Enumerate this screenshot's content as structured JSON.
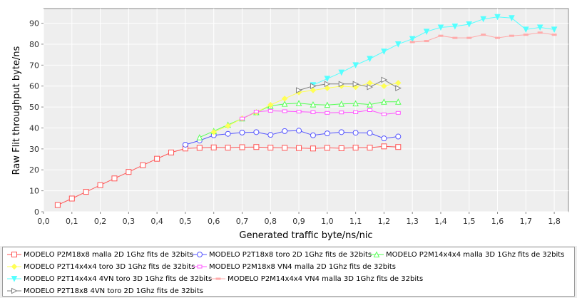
{
  "chart_data": {
    "type": "line",
    "title": "",
    "xlabel": "Generated traffic byte/ns/nic",
    "ylabel": "Raw Flit throughput byte/ns",
    "xlim": [
      0.0,
      1.85
    ],
    "ylim": [
      0,
      97
    ],
    "x_ticks": [
      "0,0",
      "0,1",
      "0,2",
      "0,3",
      "0,4",
      "0,5",
      "0,6",
      "0,7",
      "0,8",
      "0,9",
      "1,0",
      "1,1",
      "1,2",
      "1,3",
      "1,4",
      "1,5",
      "1,6",
      "1,7",
      "1,8"
    ],
    "y_ticks": [
      "0",
      "10",
      "20",
      "30",
      "40",
      "50",
      "60",
      "70",
      "80",
      "90"
    ],
    "grid": true,
    "legend_position": "bottom",
    "series": [
      {
        "name": "MODELO P2M18x8 malla 2D 1Ghz fits de 32bits",
        "color": "#ff5555",
        "marker": "square",
        "x": [
          0.05,
          0.1,
          0.15,
          0.2,
          0.25,
          0.3,
          0.35,
          0.4,
          0.45,
          0.5,
          0.55,
          0.6,
          0.65,
          0.7,
          0.75,
          0.8,
          0.85,
          0.9,
          0.95,
          1.0,
          1.05,
          1.1,
          1.15,
          1.2,
          1.25
        ],
        "y": [
          3.2,
          6.3,
          9.5,
          12.7,
          15.9,
          19.0,
          22.2,
          25.3,
          28.3,
          30.2,
          30.5,
          30.7,
          30.6,
          30.8,
          30.9,
          30.6,
          30.5,
          30.4,
          30.2,
          30.5,
          30.3,
          30.6,
          30.6,
          31.2,
          30.9
        ]
      },
      {
        "name": "MODELO P2T18x8 toro 2D 1Ghz fits de 32bits",
        "color": "#5555ff",
        "marker": "circle",
        "x": [
          0.5,
          0.55,
          0.6,
          0.65,
          0.7,
          0.75,
          0.8,
          0.85,
          0.9,
          0.95,
          1.0,
          1.05,
          1.1,
          1.15,
          1.2,
          1.25
        ],
        "y": [
          32.0,
          34.0,
          36.5,
          37.2,
          37.8,
          38.0,
          36.7,
          38.5,
          38.7,
          36.5,
          37.4,
          38.0,
          37.7,
          37.6,
          35.0,
          35.9
        ]
      },
      {
        "name": "MODELO P2M14x4x4 malla 3D 1Ghz fits de 32bits",
        "color": "#55ff55",
        "marker": "triangle-up",
        "x": [
          0.55,
          0.6,
          0.65,
          0.7,
          0.75,
          0.8,
          0.85,
          0.9,
          0.95,
          1.0,
          1.05,
          1.1,
          1.15,
          1.2,
          1.25
        ],
        "y": [
          35.5,
          38.5,
          41.5,
          44.5,
          47.5,
          50.5,
          51.5,
          51.8,
          51.2,
          51.0,
          51.5,
          51.7,
          51.2,
          52.5,
          52.5
        ]
      },
      {
        "name": "MODELO P2T14x4x4 toro 3D 1Ghz fits de 32bits",
        "color": "#ffff55",
        "marker": "diamond",
        "x": [
          0.6,
          0.65,
          0.7,
          0.75,
          0.8,
          0.85,
          0.9,
          0.95,
          1.0,
          1.05,
          1.1,
          1.15,
          1.2,
          1.25
        ],
        "y": [
          38.0,
          41.0,
          44.5,
          47.5,
          51.0,
          54.0,
          57.0,
          58.0,
          59.0,
          60.0,
          59.5,
          61.5,
          60.0,
          61.5
        ]
      },
      {
        "name": "MODELO P2M18x8 VN4 malla 2D 1Ghz fits de 32bits",
        "color": "#ff55ff",
        "marker": "square-small",
        "x": [
          0.7,
          0.75,
          0.8,
          0.85,
          0.9,
          0.95,
          1.0,
          1.05,
          1.1,
          1.15,
          1.2,
          1.25
        ],
        "y": [
          44.5,
          47.8,
          48.2,
          48.0,
          47.8,
          47.5,
          47.2,
          47.4,
          47.5,
          48.5,
          46.5,
          47.2
        ]
      },
      {
        "name": "MODELO P2T14x4x4 4VN toro 3D 1Ghz fits de 32bits",
        "color": "#55ffff",
        "marker": "triangle-down",
        "x": [
          0.95,
          1.0,
          1.05,
          1.1,
          1.15,
          1.2,
          1.25,
          1.3,
          1.35,
          1.4,
          1.45,
          1.5,
          1.55,
          1.6,
          1.65,
          1.7,
          1.75,
          1.8
        ],
        "y": [
          60.5,
          63.5,
          66.5,
          70.0,
          73.0,
          76.5,
          80.0,
          82.5,
          86.0,
          88.0,
          88.5,
          89.5,
          92.0,
          93.0,
          92.5,
          87.0,
          88.0,
          87.0
        ]
      },
      {
        "name": "MODELO P2M14x4x4 VN4 malla 3D 1Ghz fits de 32bits",
        "color": "#ffaaaa",
        "marker": "dash",
        "x": [
          1.3,
          1.35,
          1.4,
          1.45,
          1.5,
          1.55,
          1.6,
          1.65,
          1.7,
          1.75,
          1.8
        ],
        "y": [
          81.0,
          81.5,
          84.0,
          83.0,
          83.0,
          84.5,
          83.0,
          84.0,
          84.5,
          85.5,
          84.5
        ]
      },
      {
        "name": "MODELO P2T18x8 4VN toro 2D 1Ghz fits de 32bits",
        "color": "#808080",
        "marker": "triangle-right",
        "x": [
          0.9,
          0.95,
          1.0,
          1.05,
          1.1,
          1.15,
          1.2,
          1.25
        ],
        "y": [
          58.0,
          60.0,
          61.0,
          61.0,
          61.0,
          59.5,
          63.0,
          59.0
        ]
      }
    ]
  }
}
